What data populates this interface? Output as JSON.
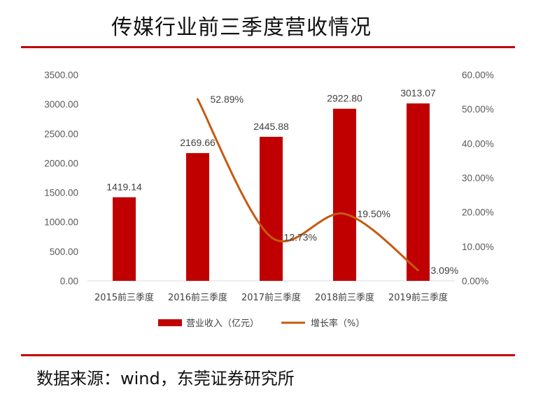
{
  "page": {
    "title": "传媒行业前三季度营收情况",
    "source": "数据来源：wind，东莞证券研究所",
    "rule_color": "#c00000"
  },
  "chart_data": {
    "type": "bar",
    "categories": [
      "2015前三季度",
      "2016前三季度",
      "2017前三季度",
      "2018前三季度",
      "2019前三季度"
    ],
    "series": [
      {
        "name": "营业收入（亿元）",
        "type": "bar",
        "axis": "left",
        "color": "#c00000",
        "values": [
          1419.14,
          2169.66,
          2445.88,
          2922.8,
          3013.07
        ],
        "labels": [
          "1419.14",
          "2169.66",
          "2445.88",
          "2922.80",
          "3013.07"
        ]
      },
      {
        "name": "增长率（%）",
        "type": "line",
        "axis": "right",
        "color": "#c55a11",
        "values": [
          null,
          52.89,
          12.73,
          19.5,
          3.09
        ],
        "labels": [
          null,
          "52.89%",
          "12.73%",
          "19.50%",
          "3.09%"
        ]
      }
    ],
    "y_left": {
      "min": 0,
      "max": 3500,
      "ticks": [
        "0.00",
        "500.00",
        "1000.00",
        "1500.00",
        "2000.00",
        "2500.00",
        "3000.00",
        "3500.00"
      ]
    },
    "y_right": {
      "min": 0,
      "max": 60,
      "ticks": [
        "0.00%",
        "10.00%",
        "20.00%",
        "30.00%",
        "40.00%",
        "50.00%",
        "60.00%"
      ]
    },
    "grid": false,
    "legend_position": "bottom"
  }
}
